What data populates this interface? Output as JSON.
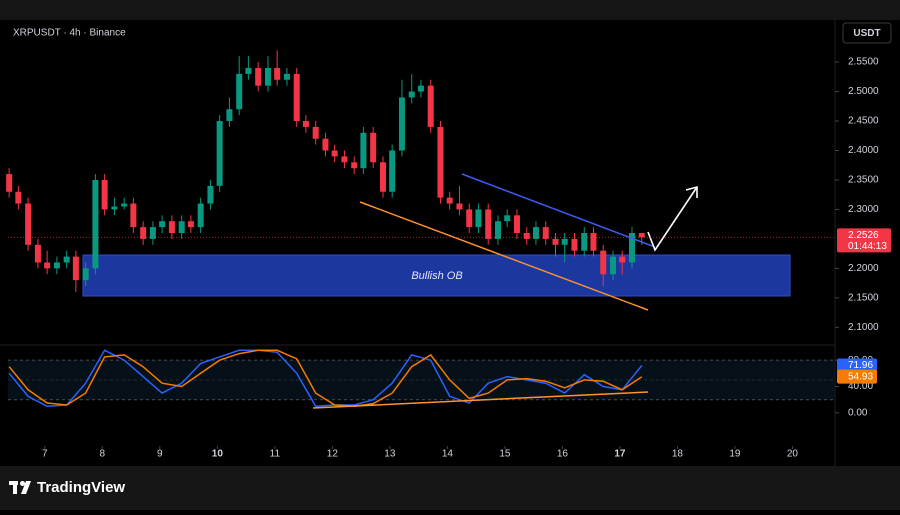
{
  "header": {
    "symbol": "XRPUSDT · 4h · Binance",
    "currency": "USDT"
  },
  "footer": {
    "brand": "TradingView"
  },
  "annotation": {
    "zone": "Bullish OB"
  },
  "chart_data": [
    {
      "type": "candlestick",
      "up_color": "#089981",
      "down_color": "#f23645",
      "x": [
        6.38,
        6.54,
        6.71,
        6.88,
        7.04,
        7.21,
        7.38,
        7.54,
        7.71,
        7.88,
        8.04,
        8.21,
        8.38,
        8.54,
        8.71,
        8.88,
        9.04,
        9.21,
        9.38,
        9.54,
        9.71,
        9.88,
        10.04,
        10.21,
        10.38,
        10.54,
        10.71,
        10.88,
        11.04,
        11.21,
        11.38,
        11.54,
        11.71,
        11.88,
        12.04,
        12.21,
        12.38,
        12.54,
        12.71,
        12.88,
        13.04,
        13.21,
        13.38,
        13.54,
        13.71,
        13.88,
        14.04,
        14.21,
        14.38,
        14.54,
        14.71,
        14.88,
        15.04,
        15.21,
        15.38,
        15.54,
        15.71,
        15.88,
        16.04,
        16.21,
        16.38,
        16.54,
        16.71,
        16.88,
        17.04,
        17.21,
        17.38
      ],
      "open": [
        2.36,
        2.33,
        2.31,
        2.24,
        2.21,
        2.2,
        2.21,
        2.22,
        2.18,
        2.2,
        2.35,
        2.3,
        2.305,
        2.31,
        2.27,
        2.25,
        2.27,
        2.28,
        2.26,
        2.28,
        2.27,
        2.31,
        2.34,
        2.45,
        2.47,
        2.53,
        2.54,
        2.51,
        2.54,
        2.52,
        2.53,
        2.45,
        2.44,
        2.42,
        2.4,
        2.39,
        2.38,
        2.37,
        2.43,
        2.38,
        2.33,
        2.4,
        2.49,
        2.5,
        2.51,
        2.44,
        2.32,
        2.31,
        2.3,
        2.27,
        2.3,
        2.25,
        2.28,
        2.29,
        2.26,
        2.25,
        2.27,
        2.25,
        2.24,
        2.25,
        2.23,
        2.26,
        2.23,
        2.19,
        2.22,
        2.21,
        2.26
      ],
      "high": [
        2.37,
        2.34,
        2.32,
        2.25,
        2.23,
        2.22,
        2.23,
        2.23,
        2.21,
        2.36,
        2.36,
        2.32,
        2.32,
        2.32,
        2.28,
        2.28,
        2.29,
        2.29,
        2.29,
        2.29,
        2.32,
        2.35,
        2.46,
        2.49,
        2.56,
        2.56,
        2.55,
        2.56,
        2.57,
        2.54,
        2.54,
        2.46,
        2.45,
        2.43,
        2.41,
        2.4,
        2.39,
        2.44,
        2.44,
        2.39,
        2.41,
        2.52,
        2.53,
        2.52,
        2.52,
        2.45,
        2.33,
        2.34,
        2.31,
        2.31,
        2.31,
        2.29,
        2.3,
        2.3,
        2.27,
        2.28,
        2.28,
        2.26,
        2.26,
        2.26,
        2.27,
        2.27,
        2.24,
        2.23,
        2.23,
        2.27,
        2.26
      ],
      "low": [
        2.32,
        2.3,
        2.23,
        2.2,
        2.19,
        2.19,
        2.2,
        2.16,
        2.17,
        2.19,
        2.29,
        2.29,
        2.3,
        2.26,
        2.24,
        2.24,
        2.26,
        2.25,
        2.25,
        2.26,
        2.26,
        2.3,
        2.33,
        2.44,
        2.46,
        2.52,
        2.5,
        2.5,
        2.51,
        2.51,
        2.44,
        2.43,
        2.41,
        2.39,
        2.38,
        2.37,
        2.36,
        2.36,
        2.37,
        2.32,
        2.32,
        2.39,
        2.48,
        2.49,
        2.43,
        2.31,
        2.3,
        2.29,
        2.26,
        2.26,
        2.24,
        2.24,
        2.27,
        2.25,
        2.24,
        2.24,
        2.24,
        2.22,
        2.21,
        2.22,
        2.22,
        2.22,
        2.17,
        2.18,
        2.19,
        2.2,
        2.24
      ],
      "close": [
        2.33,
        2.31,
        2.24,
        2.21,
        2.2,
        2.21,
        2.22,
        2.18,
        2.2,
        2.35,
        2.3,
        2.305,
        2.31,
        2.27,
        2.25,
        2.27,
        2.28,
        2.26,
        2.28,
        2.27,
        2.31,
        2.34,
        2.45,
        2.47,
        2.53,
        2.54,
        2.51,
        2.54,
        2.52,
        2.53,
        2.45,
        2.44,
        2.42,
        2.4,
        2.39,
        2.38,
        2.37,
        2.43,
        2.38,
        2.33,
        2.4,
        2.49,
        2.5,
        2.51,
        2.44,
        2.32,
        2.31,
        2.3,
        2.27,
        2.3,
        2.25,
        2.28,
        2.29,
        2.26,
        2.25,
        2.27,
        2.25,
        2.24,
        2.25,
        2.23,
        2.26,
        2.23,
        2.19,
        2.22,
        2.21,
        2.26,
        2.2526
      ],
      "last_price": {
        "value": 2.2526,
        "label": "2.2526"
      },
      "countdown": "01:44:13",
      "xlim": [
        6.36,
        20.74
      ],
      "xticks": [
        7,
        8,
        9,
        10,
        11,
        12,
        13,
        14,
        15,
        16,
        17,
        18,
        19,
        20
      ],
      "xtick_bold": [
        10,
        17
      ],
      "ylim": [
        2.07,
        2.618
      ],
      "yticks": [
        {
          "value": 2.55,
          "label": "2.5500"
        },
        {
          "value": 2.5,
          "label": "2.5000"
        },
        {
          "value": 2.45,
          "label": "2.4500"
        },
        {
          "value": 2.4,
          "label": "2.4000"
        },
        {
          "value": 2.35,
          "label": "2.3500"
        },
        {
          "value": 2.3,
          "label": "2.3000"
        },
        {
          "value": 2.2,
          "label": "2.2000"
        },
        {
          "value": 2.15,
          "label": "2.1500"
        },
        {
          "value": 2.1,
          "label": "2.1000"
        }
      ],
      "grid": false
    },
    {
      "type": "line",
      "x": [
        6.38,
        6.71,
        7.04,
        7.38,
        7.71,
        8.04,
        8.38,
        8.71,
        9.04,
        9.38,
        9.71,
        10.04,
        10.38,
        10.71,
        11.04,
        11.38,
        11.71,
        12.04,
        12.38,
        12.71,
        13.04,
        13.38,
        13.71,
        14.04,
        14.38,
        14.71,
        15.04,
        15.38,
        15.71,
        16.04,
        16.38,
        16.71,
        17.04,
        17.38
      ],
      "series": [
        {
          "color": "#2962ff",
          "values": [
            60,
            25,
            10,
            12,
            45,
            95,
            80,
            55,
            30,
            45,
            75,
            85,
            95,
            95,
            92,
            60,
            10,
            12,
            12,
            20,
            45,
            88,
            80,
            25,
            15,
            45,
            55,
            50,
            45,
            30,
            58,
            40,
            35,
            71.96
          ],
          "last_label": "71.96"
        },
        {
          "color": "#f57c00",
          "values": [
            70,
            35,
            15,
            12,
            30,
            85,
            88,
            70,
            45,
            40,
            60,
            80,
            90,
            95,
            95,
            82,
            30,
            12,
            10,
            14,
            30,
            70,
            88,
            50,
            22,
            30,
            50,
            52,
            48,
            38,
            50,
            48,
            35,
            54.93
          ],
          "last_label": "54.93"
        }
      ],
      "bands": [
        80,
        50,
        20
      ],
      "xlim": [
        6.36,
        20.74
      ],
      "ylim": [
        -26,
        103
      ],
      "yticks": [
        {
          "value": 80,
          "label": "80.00"
        },
        {
          "value": 40,
          "label": "40.00"
        },
        {
          "value": 0,
          "label": "0.00"
        }
      ],
      "grid": false
    }
  ]
}
